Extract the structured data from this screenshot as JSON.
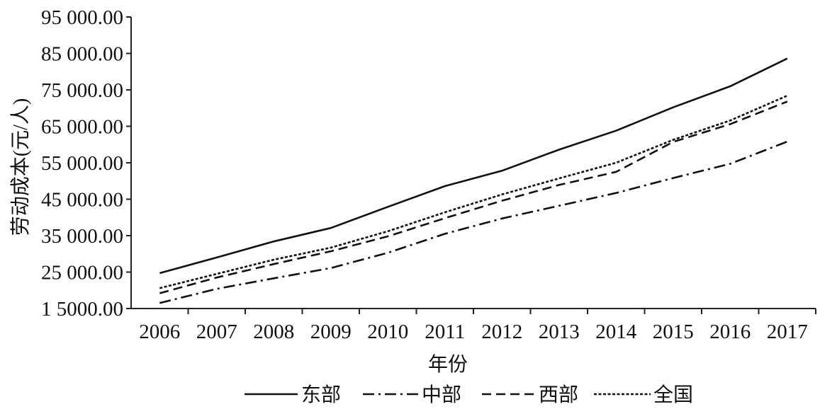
{
  "chart_data": {
    "type": "line",
    "xlabel": "年份",
    "ylabel": "劳动成本(元/人)",
    "categories": [
      "2006",
      "2007",
      "2008",
      "2009",
      "2010",
      "2011",
      "2012",
      "2013",
      "2014",
      "2015",
      "2016",
      "2017"
    ],
    "ylim": [
      15000,
      95000
    ],
    "yticks": [
      15000,
      25000,
      35000,
      45000,
      55000,
      65000,
      75000,
      85000,
      95000
    ],
    "ytick_labels": [
      "1 5000.00",
      "25 000.00",
      "35 000.00",
      "45 000.00",
      "55 000.00",
      "65 000.00",
      "75 000.00",
      "85 000.00",
      "95 000.00"
    ],
    "grid": false,
    "legend": "bottom",
    "series": [
      {
        "name": "东部",
        "line_style": "solid",
        "values": [
          24700,
          29000,
          33400,
          37100,
          42900,
          48600,
          52800,
          58600,
          63800,
          70200,
          76000,
          83600
        ]
      },
      {
        "name": "中部",
        "line_style": "dash-dot",
        "values": [
          16500,
          20400,
          23300,
          26100,
          30300,
          35500,
          39700,
          43200,
          46700,
          50800,
          54700,
          60800
        ]
      },
      {
        "name": "西部",
        "line_style": "dashed",
        "values": [
          19200,
          23500,
          27200,
          30700,
          34800,
          39800,
          44600,
          48900,
          52500,
          60700,
          65600,
          71800
        ]
      },
      {
        "name": "全国",
        "line_style": "dotted",
        "values": [
          20600,
          24500,
          28400,
          31700,
          36200,
          41400,
          46300,
          50700,
          55000,
          61300,
          66600,
          73400
        ]
      }
    ]
  }
}
